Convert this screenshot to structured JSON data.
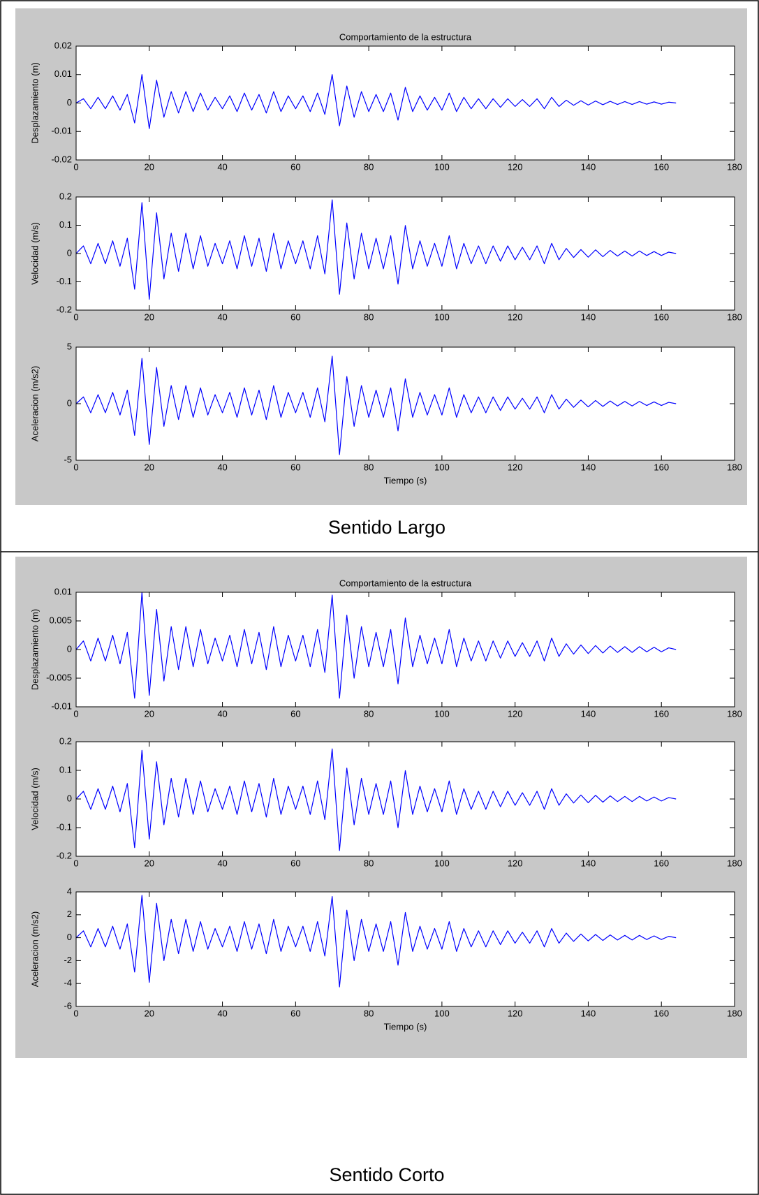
{
  "panels": [
    {
      "caption": "Sentido Largo"
    },
    {
      "caption": "Sentido Corto"
    }
  ],
  "chart_data": [
    {
      "type": "line",
      "title": "Comportamiento de la estructura",
      "ylabel": "Desplazamiento (m)",
      "color": "#0000ff",
      "x": [
        0,
        2,
        4,
        6,
        8,
        10,
        12,
        14,
        16,
        18,
        20,
        22,
        24,
        26,
        28,
        30,
        32,
        34,
        36,
        38,
        40,
        42,
        44,
        46,
        48,
        50,
        52,
        54,
        56,
        58,
        60,
        62,
        64,
        66,
        68,
        70,
        72,
        74,
        76,
        78,
        80,
        82,
        84,
        86,
        88,
        90,
        92,
        94,
        96,
        98,
        100,
        102,
        104,
        106,
        108,
        110,
        112,
        114,
        116,
        118,
        120,
        122,
        124,
        126,
        128,
        130,
        132,
        134,
        136,
        138,
        140,
        142,
        144,
        146,
        148,
        150,
        152,
        154,
        156,
        158,
        160,
        162,
        164
      ],
      "values": [
        0,
        0.0015,
        -0.002,
        0.002,
        -0.002,
        0.0025,
        -0.0025,
        0.003,
        -0.007,
        0.01,
        -0.009,
        0.008,
        -0.005,
        0.004,
        -0.0035,
        0.004,
        -0.003,
        0.0035,
        -0.0025,
        0.002,
        -0.002,
        0.0025,
        -0.003,
        0.0035,
        -0.0025,
        0.003,
        -0.0035,
        0.004,
        -0.003,
        0.0025,
        -0.002,
        0.0025,
        -0.003,
        0.0035,
        -0.004,
        0.01,
        -0.008,
        0.006,
        -0.005,
        0.004,
        -0.003,
        0.003,
        -0.003,
        0.0035,
        -0.006,
        0.0055,
        -0.003,
        0.0025,
        -0.0025,
        0.002,
        -0.0025,
        0.0035,
        -0.003,
        0.002,
        -0.002,
        0.0015,
        -0.002,
        0.0015,
        -0.0015,
        0.0015,
        -0.0012,
        0.0012,
        -0.0012,
        0.0015,
        -0.002,
        0.002,
        -0.0012,
        0.001,
        -0.0008,
        0.0008,
        -0.0007,
        0.0007,
        -0.0006,
        0.0006,
        -0.0005,
        0.0005,
        -0.0005,
        0.0005,
        -0.0004,
        0.0004,
        -0.0004,
        0.0003,
        0
      ],
      "xlim": [
        0,
        180
      ],
      "xticks": [
        0,
        20,
        40,
        60,
        80,
        100,
        120,
        140,
        160,
        180
      ],
      "ylim": [
        -0.02,
        0.02
      ],
      "yticks": [
        -0.02,
        -0.01,
        0,
        0.01,
        0.02
      ]
    },
    {
      "type": "line",
      "ylabel": "Velocidad (m/s)",
      "color": "#0000ff",
      "x": [
        0,
        2,
        4,
        6,
        8,
        10,
        12,
        14,
        16,
        18,
        20,
        22,
        24,
        26,
        28,
        30,
        32,
        34,
        36,
        38,
        40,
        42,
        44,
        46,
        48,
        50,
        52,
        54,
        56,
        58,
        60,
        62,
        64,
        66,
        68,
        70,
        72,
        74,
        76,
        78,
        80,
        82,
        84,
        86,
        88,
        90,
        92,
        94,
        96,
        98,
        100,
        102,
        104,
        106,
        108,
        110,
        112,
        114,
        116,
        118,
        120,
        122,
        124,
        126,
        128,
        130,
        132,
        134,
        136,
        138,
        140,
        142,
        144,
        146,
        148,
        150,
        152,
        154,
        156,
        158,
        160,
        162,
        164
      ],
      "values": [
        0,
        0.027,
        -0.036,
        0.036,
        -0.036,
        0.045,
        -0.045,
        0.054,
        -0.126,
        0.18,
        -0.162,
        0.144,
        -0.09,
        0.072,
        -0.063,
        0.072,
        -0.054,
        0.063,
        -0.045,
        0.036,
        -0.036,
        0.045,
        -0.054,
        0.063,
        -0.045,
        0.054,
        -0.063,
        0.072,
        -0.054,
        0.045,
        -0.036,
        0.045,
        -0.054,
        0.063,
        -0.072,
        0.19,
        -0.144,
        0.108,
        -0.09,
        0.072,
        -0.054,
        0.054,
        -0.054,
        0.063,
        -0.108,
        0.099,
        -0.054,
        0.045,
        -0.045,
        0.036,
        -0.045,
        0.063,
        -0.054,
        0.036,
        -0.036,
        0.027,
        -0.036,
        0.027,
        -0.027,
        0.027,
        -0.022,
        0.022,
        -0.022,
        0.027,
        -0.036,
        0.036,
        -0.022,
        0.018,
        -0.014,
        0.014,
        -0.013,
        0.013,
        -0.011,
        0.011,
        -0.009,
        0.009,
        -0.009,
        0.009,
        -0.007,
        0.007,
        -0.007,
        0.005,
        0
      ],
      "xlim": [
        0,
        180
      ],
      "xticks": [
        0,
        20,
        40,
        60,
        80,
        100,
        120,
        140,
        160,
        180
      ],
      "ylim": [
        -0.2,
        0.2
      ],
      "yticks": [
        -0.2,
        -0.1,
        0,
        0.1,
        0.2
      ]
    },
    {
      "type": "line",
      "ylabel": "Aceleracion (m/s2)",
      "xlabel": "Tiempo (s)",
      "color": "#0000ff",
      "x": [
        0,
        2,
        4,
        6,
        8,
        10,
        12,
        14,
        16,
        18,
        20,
        22,
        24,
        26,
        28,
        30,
        32,
        34,
        36,
        38,
        40,
        42,
        44,
        46,
        48,
        50,
        52,
        54,
        56,
        58,
        60,
        62,
        64,
        66,
        68,
        70,
        72,
        74,
        76,
        78,
        80,
        82,
        84,
        86,
        88,
        90,
        92,
        94,
        96,
        98,
        100,
        102,
        104,
        106,
        108,
        110,
        112,
        114,
        116,
        118,
        120,
        122,
        124,
        126,
        128,
        130,
        132,
        134,
        136,
        138,
        140,
        142,
        144,
        146,
        148,
        150,
        152,
        154,
        156,
        158,
        160,
        162,
        164
      ],
      "values": [
        0,
        0.6,
        -0.8,
        0.8,
        -0.8,
        1,
        -1,
        1.2,
        -2.8,
        4,
        -3.6,
        3.2,
        -2,
        1.6,
        -1.4,
        1.6,
        -1.2,
        1.4,
        -1,
        0.8,
        -0.8,
        1,
        -1.2,
        1.4,
        -1,
        1.2,
        -1.4,
        1.6,
        -1.2,
        1,
        -0.8,
        1,
        -1.2,
        1.4,
        -1.6,
        4.2,
        -4.5,
        2.4,
        -2,
        1.6,
        -1.2,
        1.2,
        -1.2,
        1.4,
        -2.4,
        2.2,
        -1.2,
        1,
        -1,
        0.8,
        -1,
        1.4,
        -1.2,
        0.8,
        -0.8,
        0.6,
        -0.8,
        0.6,
        -0.6,
        0.6,
        -0.48,
        0.48,
        -0.48,
        0.6,
        -0.8,
        0.8,
        -0.48,
        0.4,
        -0.32,
        0.32,
        -0.28,
        0.28,
        -0.24,
        0.24,
        -0.2,
        0.2,
        -0.2,
        0.2,
        -0.16,
        0.16,
        -0.16,
        0.12,
        0
      ],
      "xlim": [
        0,
        180
      ],
      "xticks": [
        0,
        20,
        40,
        60,
        80,
        100,
        120,
        140,
        160,
        180
      ],
      "ylim": [
        -5,
        5
      ],
      "yticks": [
        -5,
        0,
        5
      ]
    },
    {
      "type": "line",
      "title": "Comportamiento de la estructura",
      "ylabel": "Desplazamiento (m)",
      "color": "#0000ff",
      "x": [
        0,
        2,
        4,
        6,
        8,
        10,
        12,
        14,
        16,
        18,
        20,
        22,
        24,
        26,
        28,
        30,
        32,
        34,
        36,
        38,
        40,
        42,
        44,
        46,
        48,
        50,
        52,
        54,
        56,
        58,
        60,
        62,
        64,
        66,
        68,
        70,
        72,
        74,
        76,
        78,
        80,
        82,
        84,
        86,
        88,
        90,
        92,
        94,
        96,
        98,
        100,
        102,
        104,
        106,
        108,
        110,
        112,
        114,
        116,
        118,
        120,
        122,
        124,
        126,
        128,
        130,
        132,
        134,
        136,
        138,
        140,
        142,
        144,
        146,
        148,
        150,
        152,
        154,
        156,
        158,
        160,
        162,
        164
      ],
      "values": [
        0,
        0.0015,
        -0.002,
        0.002,
        -0.002,
        0.0025,
        -0.0025,
        0.003,
        -0.0085,
        0.01,
        -0.008,
        0.007,
        -0.0055,
        0.004,
        -0.0035,
        0.004,
        -0.003,
        0.0035,
        -0.0025,
        0.002,
        -0.002,
        0.0025,
        -0.003,
        0.0035,
        -0.0025,
        0.003,
        -0.0035,
        0.004,
        -0.003,
        0.0025,
        -0.002,
        0.0025,
        -0.003,
        0.0035,
        -0.004,
        0.0095,
        -0.0085,
        0.006,
        -0.005,
        0.004,
        -0.003,
        0.003,
        -0.003,
        0.0035,
        -0.006,
        0.0055,
        -0.003,
        0.0025,
        -0.0025,
        0.002,
        -0.0025,
        0.0035,
        -0.003,
        0.002,
        -0.002,
        0.0015,
        -0.002,
        0.0015,
        -0.0015,
        0.0015,
        -0.0012,
        0.0012,
        -0.0012,
        0.0015,
        -0.002,
        0.002,
        -0.0012,
        0.001,
        -0.0008,
        0.0008,
        -0.0007,
        0.0007,
        -0.0006,
        0.0006,
        -0.0005,
        0.0005,
        -0.0005,
        0.0005,
        -0.0004,
        0.0004,
        -0.0004,
        0.0003,
        0
      ],
      "xlim": [
        0,
        180
      ],
      "xticks": [
        0,
        20,
        40,
        60,
        80,
        100,
        120,
        140,
        160,
        180
      ],
      "ylim": [
        -0.01,
        0.01
      ],
      "yticks": [
        -0.01,
        -0.005,
        0,
        0.005,
        0.01
      ]
    },
    {
      "type": "line",
      "ylabel": "Velocidad (m/s)",
      "color": "#0000ff",
      "x": [
        0,
        2,
        4,
        6,
        8,
        10,
        12,
        14,
        16,
        18,
        20,
        22,
        24,
        26,
        28,
        30,
        32,
        34,
        36,
        38,
        40,
        42,
        44,
        46,
        48,
        50,
        52,
        54,
        56,
        58,
        60,
        62,
        64,
        66,
        68,
        70,
        72,
        74,
        76,
        78,
        80,
        82,
        84,
        86,
        88,
        90,
        92,
        94,
        96,
        98,
        100,
        102,
        104,
        106,
        108,
        110,
        112,
        114,
        116,
        118,
        120,
        122,
        124,
        126,
        128,
        130,
        132,
        134,
        136,
        138,
        140,
        142,
        144,
        146,
        148,
        150,
        152,
        154,
        156,
        158,
        160,
        162,
        164
      ],
      "values": [
        0,
        0.027,
        -0.036,
        0.036,
        -0.036,
        0.045,
        -0.045,
        0.054,
        -0.17,
        0.17,
        -0.14,
        0.13,
        -0.09,
        0.072,
        -0.063,
        0.072,
        -0.054,
        0.063,
        -0.045,
        0.036,
        -0.036,
        0.045,
        -0.054,
        0.063,
        -0.045,
        0.054,
        -0.063,
        0.072,
        -0.054,
        0.045,
        -0.036,
        0.045,
        -0.054,
        0.063,
        -0.072,
        0.175,
        -0.18,
        0.108,
        -0.09,
        0.072,
        -0.054,
        0.054,
        -0.054,
        0.063,
        -0.1,
        0.099,
        -0.054,
        0.045,
        -0.045,
        0.036,
        -0.045,
        0.063,
        -0.054,
        0.036,
        -0.036,
        0.027,
        -0.036,
        0.027,
        -0.027,
        0.027,
        -0.022,
        0.022,
        -0.022,
        0.027,
        -0.036,
        0.036,
        -0.022,
        0.018,
        -0.014,
        0.014,
        -0.013,
        0.013,
        -0.011,
        0.011,
        -0.009,
        0.009,
        -0.009,
        0.009,
        -0.007,
        0.007,
        -0.007,
        0.005,
        0
      ],
      "xlim": [
        0,
        180
      ],
      "xticks": [
        0,
        20,
        40,
        60,
        80,
        100,
        120,
        140,
        160,
        180
      ],
      "ylim": [
        -0.2,
        0.2
      ],
      "yticks": [
        -0.2,
        -0.1,
        0,
        0.1,
        0.2
      ]
    },
    {
      "type": "line",
      "ylabel": "Aceleracion (m/s2)",
      "xlabel": "Tiempo (s)",
      "color": "#0000ff",
      "x": [
        0,
        2,
        4,
        6,
        8,
        10,
        12,
        14,
        16,
        18,
        20,
        22,
        24,
        26,
        28,
        30,
        32,
        34,
        36,
        38,
        40,
        42,
        44,
        46,
        48,
        50,
        52,
        54,
        56,
        58,
        60,
        62,
        64,
        66,
        68,
        70,
        72,
        74,
        76,
        78,
        80,
        82,
        84,
        86,
        88,
        90,
        92,
        94,
        96,
        98,
        100,
        102,
        104,
        106,
        108,
        110,
        112,
        114,
        116,
        118,
        120,
        122,
        124,
        126,
        128,
        130,
        132,
        134,
        136,
        138,
        140,
        142,
        144,
        146,
        148,
        150,
        152,
        154,
        156,
        158,
        160,
        162,
        164
      ],
      "values": [
        0,
        0.6,
        -0.8,
        0.8,
        -0.8,
        1,
        -1,
        1.2,
        -3,
        3.7,
        -3.9,
        3,
        -2,
        1.6,
        -1.4,
        1.6,
        -1.2,
        1.4,
        -1,
        0.8,
        -0.8,
        1,
        -1.2,
        1.4,
        -1,
        1.2,
        -1.4,
        1.6,
        -1.2,
        1,
        -0.8,
        1,
        -1.2,
        1.4,
        -1.6,
        3.6,
        -4.3,
        2.4,
        -2,
        1.6,
        -1.2,
        1.2,
        -1.2,
        1.4,
        -2.4,
        2.2,
        -1.2,
        1,
        -1,
        0.8,
        -1,
        1.4,
        -1.2,
        0.8,
        -0.8,
        0.6,
        -0.8,
        0.6,
        -0.6,
        0.6,
        -0.48,
        0.48,
        -0.48,
        0.6,
        -0.8,
        0.8,
        -0.48,
        0.4,
        -0.32,
        0.32,
        -0.28,
        0.28,
        -0.24,
        0.24,
        -0.2,
        0.2,
        -0.2,
        0.2,
        -0.16,
        0.16,
        -0.16,
        0.12,
        0
      ],
      "xlim": [
        0,
        180
      ],
      "xticks": [
        0,
        20,
        40,
        60,
        80,
        100,
        120,
        140,
        160,
        180
      ],
      "ylim": [
        -6,
        4
      ],
      "yticks": [
        -6,
        -4,
        -2,
        0,
        2,
        4
      ]
    }
  ]
}
